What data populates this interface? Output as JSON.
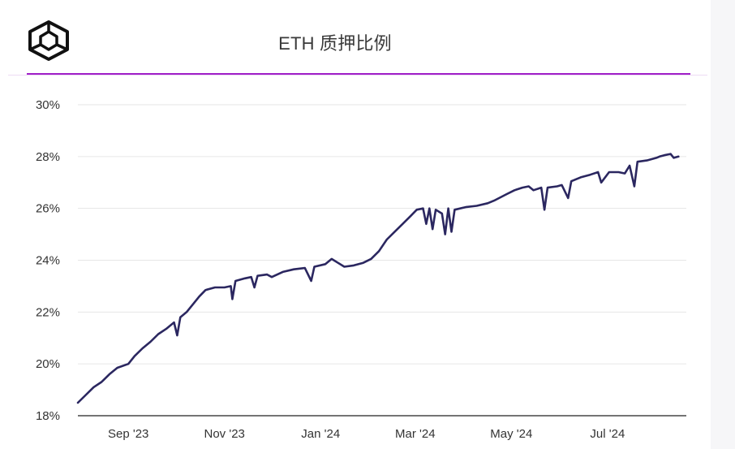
{
  "header": {
    "title": "ETH 质押比例",
    "logo_icon": "cube-logo-icon"
  },
  "colors": {
    "line": "#2b2760",
    "accent_rule": "#a020c8",
    "grid": "#e6e6e6",
    "axis": "#222222"
  },
  "chart_data": {
    "type": "line",
    "title": "ETH 质押比例",
    "xlabel": "",
    "ylabel": "",
    "ylim": [
      18,
      30
    ],
    "yticks": [
      18,
      20,
      22,
      24,
      26,
      28,
      30
    ],
    "ytick_labels": [
      "18%",
      "20%",
      "22%",
      "24%",
      "26%",
      "28%",
      "30%"
    ],
    "x_range": [
      "2023-07-31",
      "2024-08-20"
    ],
    "xticks": [
      "2023-09-01",
      "2023-11-01",
      "2024-01-01",
      "2024-03-01",
      "2024-05-01",
      "2024-07-01"
    ],
    "xtick_labels": [
      "Sep '23",
      "Nov '23",
      "Jan '24",
      "Mar '24",
      "May '24",
      "Jul '24"
    ],
    "grid": true,
    "legend": "none",
    "series": [
      {
        "points": [
          [
            "2023-07-31",
            18.5
          ],
          [
            "2023-08-05",
            18.8
          ],
          [
            "2023-08-10",
            19.1
          ],
          [
            "2023-08-15",
            19.3
          ],
          [
            "2023-08-20",
            19.6
          ],
          [
            "2023-08-25",
            19.85
          ],
          [
            "2023-09-01",
            20.0
          ],
          [
            "2023-09-05",
            20.3
          ],
          [
            "2023-09-10",
            20.6
          ],
          [
            "2023-09-15",
            20.85
          ],
          [
            "2023-09-20",
            21.15
          ],
          [
            "2023-09-25",
            21.35
          ],
          [
            "2023-09-30",
            21.6
          ],
          [
            "2023-10-02",
            21.1
          ],
          [
            "2023-10-04",
            21.8
          ],
          [
            "2023-10-08",
            22.0
          ],
          [
            "2023-10-12",
            22.3
          ],
          [
            "2023-10-16",
            22.6
          ],
          [
            "2023-10-20",
            22.85
          ],
          [
            "2023-10-26",
            22.95
          ],
          [
            "2023-11-01",
            22.95
          ],
          [
            "2023-11-05",
            23.0
          ],
          [
            "2023-11-06",
            22.5
          ],
          [
            "2023-11-08",
            23.2
          ],
          [
            "2023-11-14",
            23.3
          ],
          [
            "2023-11-18",
            23.35
          ],
          [
            "2023-11-20",
            22.95
          ],
          [
            "2023-11-22",
            23.4
          ],
          [
            "2023-11-28",
            23.45
          ],
          [
            "2023-12-01",
            23.35
          ],
          [
            "2023-12-08",
            23.55
          ],
          [
            "2023-12-15",
            23.65
          ],
          [
            "2023-12-22",
            23.7
          ],
          [
            "2023-12-26",
            23.2
          ],
          [
            "2023-12-28",
            23.75
          ],
          [
            "2024-01-04",
            23.85
          ],
          [
            "2024-01-08",
            24.05
          ],
          [
            "2024-01-12",
            23.9
          ],
          [
            "2024-01-16",
            23.75
          ],
          [
            "2024-01-22",
            23.8
          ],
          [
            "2024-01-28",
            23.9
          ],
          [
            "2024-02-02",
            24.05
          ],
          [
            "2024-02-07",
            24.35
          ],
          [
            "2024-02-12",
            24.8
          ],
          [
            "2024-02-17",
            25.1
          ],
          [
            "2024-02-22",
            25.4
          ],
          [
            "2024-02-27",
            25.7
          ],
          [
            "2024-03-02",
            25.95
          ],
          [
            "2024-03-06",
            26.0
          ],
          [
            "2024-03-08",
            25.4
          ],
          [
            "2024-03-10",
            26.0
          ],
          [
            "2024-03-12",
            25.2
          ],
          [
            "2024-03-14",
            25.95
          ],
          [
            "2024-03-18",
            25.8
          ],
          [
            "2024-03-20",
            25.0
          ],
          [
            "2024-03-22",
            26.0
          ],
          [
            "2024-03-24",
            25.1
          ],
          [
            "2024-03-26",
            25.95
          ],
          [
            "2024-04-02",
            26.05
          ],
          [
            "2024-04-09",
            26.1
          ],
          [
            "2024-04-16",
            26.2
          ],
          [
            "2024-04-20",
            26.3
          ],
          [
            "2024-04-28",
            26.55
          ],
          [
            "2024-05-03",
            26.7
          ],
          [
            "2024-05-08",
            26.8
          ],
          [
            "2024-05-12",
            26.85
          ],
          [
            "2024-05-15",
            26.7
          ],
          [
            "2024-05-20",
            26.8
          ],
          [
            "2024-05-22",
            25.95
          ],
          [
            "2024-05-24",
            26.8
          ],
          [
            "2024-05-30",
            26.85
          ],
          [
            "2024-06-02",
            26.9
          ],
          [
            "2024-06-06",
            26.4
          ],
          [
            "2024-06-08",
            27.05
          ],
          [
            "2024-06-14",
            27.2
          ],
          [
            "2024-06-20",
            27.3
          ],
          [
            "2024-06-25",
            27.4
          ],
          [
            "2024-06-27",
            27.0
          ],
          [
            "2024-07-02",
            27.4
          ],
          [
            "2024-07-08",
            27.4
          ],
          [
            "2024-07-12",
            27.35
          ],
          [
            "2024-07-15",
            27.65
          ],
          [
            "2024-07-18",
            26.85
          ],
          [
            "2024-07-20",
            27.8
          ],
          [
            "2024-07-26",
            27.85
          ],
          [
            "2024-08-01",
            27.95
          ],
          [
            "2024-08-03",
            28.0
          ],
          [
            "2024-08-06",
            28.05
          ],
          [
            "2024-08-10",
            28.1
          ],
          [
            "2024-08-12",
            27.95
          ],
          [
            "2024-08-15",
            28.0
          ]
        ]
      }
    ]
  }
}
